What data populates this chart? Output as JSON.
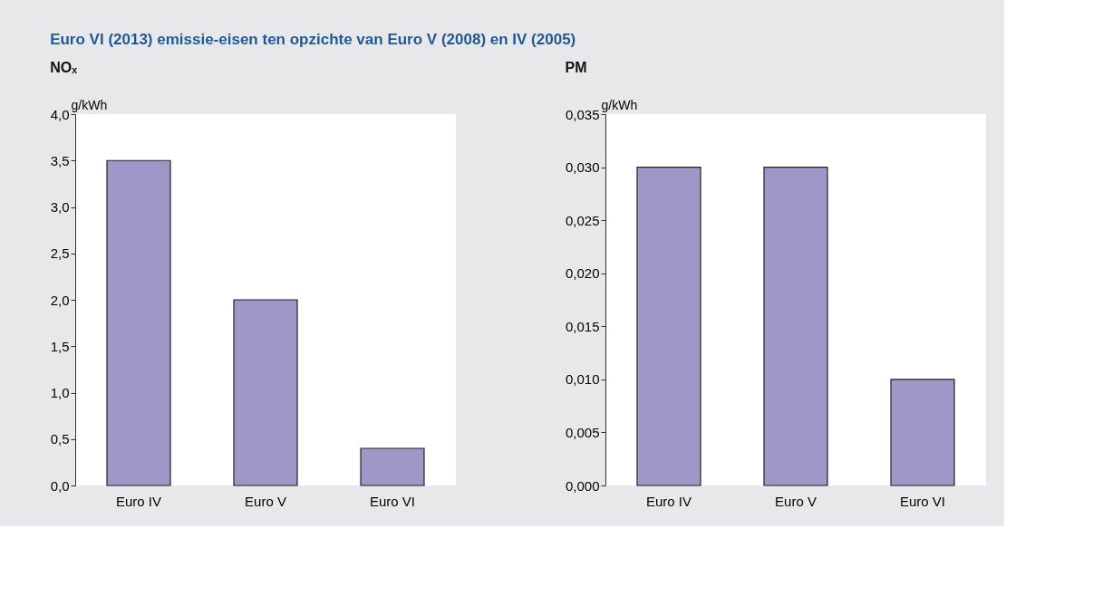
{
  "chart_data": [
    {
      "type": "bar",
      "title": "Euro VI (2013) emissie-eisen ten opzichte van Euro V (2008) en IV (2005)",
      "subtitle": "NOₓ",
      "ylabel": "g/kWh",
      "categories": [
        "Euro IV",
        "Euro V",
        "Euro VI"
      ],
      "values": [
        3.5,
        2.0,
        0.4
      ],
      "color": "#9e98c9",
      "ylim": [
        0,
        4
      ],
      "yticks": [
        {
          "value": 0,
          "label": "0,0"
        },
        {
          "value": 0.5,
          "label": "0,5"
        },
        {
          "value": 1,
          "label": "1,0"
        },
        {
          "value": 1.5,
          "label": "1,5"
        },
        {
          "value": 2,
          "label": "2,0"
        },
        {
          "value": 2.5,
          "label": "2,5"
        },
        {
          "value": 3,
          "label": "3,0"
        },
        {
          "value": 3.5,
          "label": "3,5"
        },
        {
          "value": 4,
          "label": "4,0"
        }
      ],
      "grid": false
    },
    {
      "type": "bar",
      "subtitle": "PM",
      "ylabel": "g/kWh",
      "categories": [
        "Euro IV",
        "Euro V",
        "Euro VI"
      ],
      "values": [
        0.03,
        0.03,
        0.01
      ],
      "color": "#9e98c9",
      "ylim": [
        0,
        0.035
      ],
      "yticks": [
        {
          "value": 0,
          "label": "0,000"
        },
        {
          "value": 0.005,
          "label": "0,005"
        },
        {
          "value": 0.01,
          "label": "0,010"
        },
        {
          "value": 0.015,
          "label": "0,015"
        },
        {
          "value": 0.02,
          "label": "0,020"
        },
        {
          "value": 0.025,
          "label": "0,025"
        },
        {
          "value": 0.03,
          "label": "0,030"
        },
        {
          "value": 0.035,
          "label": "0,035"
        }
      ],
      "grid": false
    }
  ]
}
